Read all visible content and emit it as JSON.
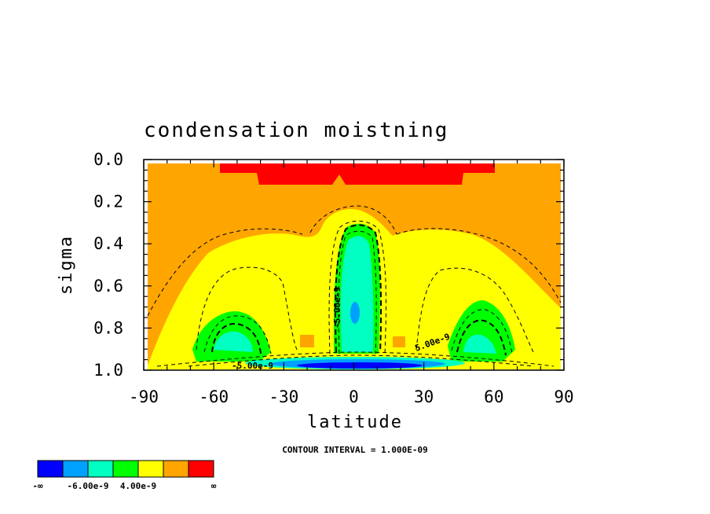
{
  "chart_data": {
    "type": "contour",
    "title": "condensation moistning",
    "xlabel": "latitude",
    "ylabel": "sigma",
    "xlim": [
      -90,
      90
    ],
    "ylim": [
      1.0,
      0.0
    ],
    "x_ticks": [
      "-90",
      "-60",
      "-30",
      "0",
      "30",
      "60",
      "90"
    ],
    "y_ticks": [
      "0.0",
      "0.2",
      "0.4",
      "0.6",
      "0.8",
      "1.0"
    ],
    "x_tick_values": [
      -90,
      -60,
      -30,
      0,
      30,
      60,
      90
    ],
    "y_tick_values": [
      0.0,
      0.2,
      0.4,
      0.6,
      0.8,
      1.0
    ],
    "contour_interval_text": "CONTOUR INTERVAL = 1.000E-09",
    "contour_labels": [
      "-5.00e-9",
      "5.00e-9",
      "-5.00e-9"
    ],
    "colorbar": {
      "colors": [
        "#0000ff",
        "#00a0ff",
        "#00ffc0",
        "#00ff00",
        "#ffff00",
        "#ffa500",
        "#ff0000"
      ],
      "labels": [
        "-∞",
        "-6.00e-9",
        "4.00e-9",
        "∞"
      ]
    }
  }
}
